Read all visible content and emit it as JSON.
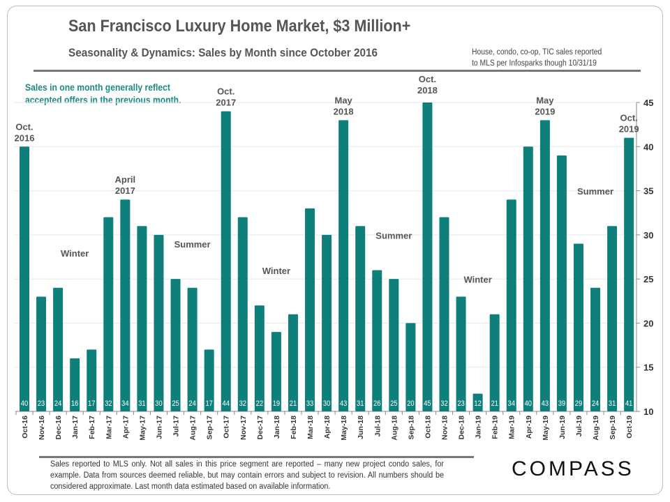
{
  "title": "San Francisco Luxury Home Market, $3 Million+",
  "subtitle": "Seasonality & Dynamics: Sales by Month since October 2016",
  "source_note": [
    "House, condo, co-op, TIC sales reported",
    "to MLS per Infosparks though 10/31/19"
  ],
  "side_note": [
    "Sales in one month generally reflect",
    "accepted offers in the previous month."
  ],
  "footnote": "Sales reported to MLS only. Not all sales in this price segment are reported – many new project condo sales, for example. Data from sources deemed reliable, but may contain errors and subject to revision. All numbers should be considered approximate. Last month data estimated based on available information.",
  "logo": "COMPASS",
  "chart_data": {
    "type": "bar",
    "title": "San Francisco Luxury Home Market, $3 Million+",
    "categories": [
      "Oct-16",
      "Nov-16",
      "Dec-16",
      "Jan-17",
      "Feb-17",
      "Mar-17",
      "Apr-17",
      "May-17",
      "Jun-17",
      "Jul-17",
      "Aug-17",
      "Sep-17",
      "Oct-17",
      "Nov-17",
      "Dec-17",
      "Jan-18",
      "Feb-18",
      "Mar-18",
      "Apr-18",
      "May-18",
      "Jun-18",
      "Jul-18",
      "Aug-18",
      "Sep-18",
      "Oct-18",
      "Nov-18",
      "Dec-18",
      "Jan-19",
      "Feb-19",
      "Mar-19",
      "Apr-19",
      "May-19",
      "Jun-19",
      "Jul-19",
      "Aug-19",
      "Sep-19",
      "Oct-19"
    ],
    "values": [
      40,
      23,
      24,
      16,
      17,
      32,
      34,
      31,
      30,
      25,
      24,
      17,
      44,
      32,
      22,
      19,
      21,
      33,
      30,
      43,
      31,
      26,
      25,
      20,
      45,
      32,
      23,
      12,
      21,
      34,
      40,
      43,
      39,
      29,
      24,
      31,
      41
    ],
    "ylim": [
      10,
      45
    ],
    "yticks": [
      10,
      15,
      20,
      25,
      30,
      35,
      40,
      45
    ],
    "y_axis_side": "right",
    "grid": true,
    "bar_color": "#0e7f7a",
    "data_labels": "inside-bottom",
    "annotations": [
      {
        "category": "Oct-16",
        "lines": [
          "Oct.",
          "2016"
        ]
      },
      {
        "category": "Jan-17",
        "lines": [
          "Winter"
        ]
      },
      {
        "category": "Apr-17",
        "lines": [
          "April",
          "2017"
        ]
      },
      {
        "category": "Aug-17",
        "lines": [
          "Summer"
        ]
      },
      {
        "category": "Oct-17",
        "lines": [
          "Oct.",
          "2017"
        ]
      },
      {
        "category": "Jan-18",
        "lines": [
          "Winter"
        ]
      },
      {
        "category": "May-18",
        "lines": [
          "May",
          "2018"
        ]
      },
      {
        "category": "Aug-18",
        "lines": [
          "Summer"
        ]
      },
      {
        "category": "Oct-18",
        "lines": [
          "Oct.",
          "2018"
        ]
      },
      {
        "category": "Jan-19",
        "lines": [
          "Winter"
        ]
      },
      {
        "category": "May-19",
        "lines": [
          "May",
          "2019"
        ]
      },
      {
        "category": "Aug-19",
        "lines": [
          "Summer"
        ]
      },
      {
        "category": "Oct-19",
        "lines": [
          "Oct.",
          "2019"
        ]
      }
    ]
  }
}
